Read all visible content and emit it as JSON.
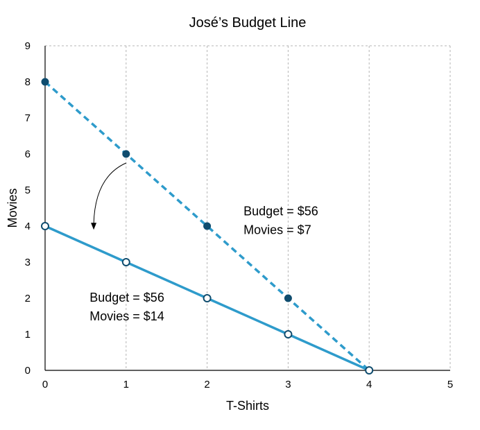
{
  "chart_data": {
    "type": "line",
    "title": "José’s Budget Line",
    "xlabel": "T-Shirts",
    "ylabel": "Movies",
    "xlim": [
      0,
      5
    ],
    "ylim": [
      0,
      9
    ],
    "x_ticks": [
      "0",
      "1",
      "2",
      "3",
      "4",
      "5"
    ],
    "y_ticks": [
      "0",
      "1",
      "2",
      "3",
      "4",
      "5",
      "6",
      "7",
      "8",
      "9"
    ],
    "grid": {
      "vertical": true,
      "horizontal": false,
      "style": "dotted"
    },
    "series": [
      {
        "style": "dashed",
        "color": "#2e9bcb",
        "marker": "filled",
        "marker_color": "#0f4c6e",
        "x": [
          0,
          1,
          2,
          3,
          4
        ],
        "y": [
          8,
          6,
          4,
          2,
          0
        ]
      },
      {
        "style": "solid",
        "color": "#2e9bcb",
        "marker": "open",
        "marker_color": "#0f4c6e",
        "x": [
          0,
          1,
          2,
          3,
          4
        ],
        "y": [
          4,
          3,
          2,
          1,
          0
        ]
      }
    ],
    "annotations": [
      {
        "lines": [
          "Budget = $56",
          "Movies = $7"
        ],
        "x": 2.45,
        "y": 4.3
      },
      {
        "lines": [
          "Budget = $56",
          "Movies = $14"
        ],
        "x": 0.55,
        "y": 1.9
      }
    ],
    "arrow": {
      "from": [
        1,
        5.75
      ],
      "to": [
        0.6,
        3.9
      ]
    }
  }
}
